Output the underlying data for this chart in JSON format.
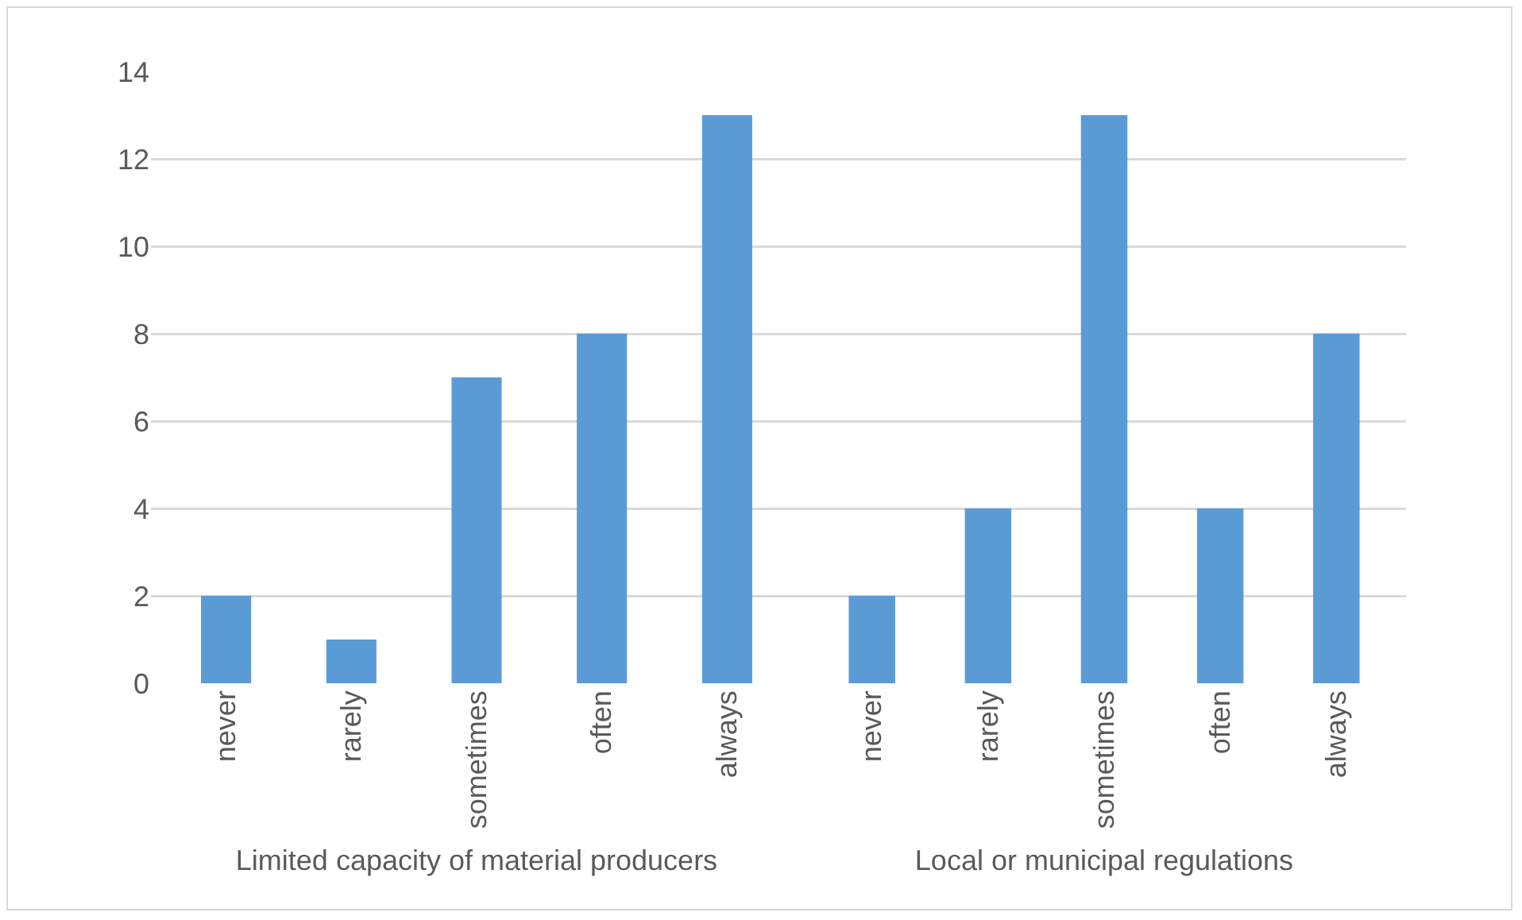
{
  "chart_data": [
    {
      "type": "bar",
      "xlabel": "Limited capacity of material producers",
      "categories": [
        "never",
        "rarely",
        "sometimes",
        "often",
        "always"
      ],
      "values": [
        2,
        1,
        7,
        8,
        13
      ],
      "color": "#5b9bd5",
      "ylim": [
        0,
        14
      ],
      "yticks": [
        0,
        2,
        4,
        6,
        8,
        10,
        12,
        14
      ],
      "grid": "y"
    },
    {
      "type": "bar",
      "xlabel": "Local or municipal regulations",
      "categories": [
        "never",
        "rarely",
        "sometimes",
        "often",
        "always"
      ],
      "values": [
        2,
        4,
        13,
        4,
        8
      ],
      "color": "#5b9bd5",
      "ylim": [
        0,
        14
      ],
      "yticks": [
        0,
        2,
        4,
        6,
        8,
        10,
        12,
        14
      ],
      "grid": "y",
      "tick_labels": "x"
    }
  ]
}
